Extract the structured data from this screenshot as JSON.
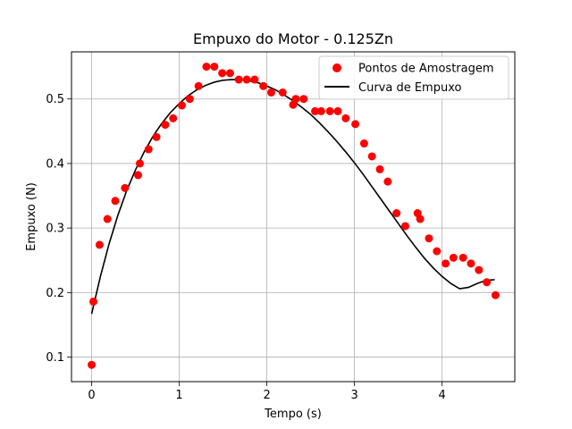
{
  "chart_data": {
    "type": "scatter",
    "title": "Empuxo do Motor - 0.125Zn",
    "xlabel": "Tempo (s)",
    "ylabel": "Empuxo (N)",
    "xlim": [
      -0.23,
      4.83
    ],
    "ylim": [
      0.062,
      0.573
    ],
    "xticks": [
      0,
      1,
      2,
      3,
      4
    ],
    "yticks": [
      0.1,
      0.2,
      0.3,
      0.4,
      0.5
    ],
    "xtick_labels": [
      "0",
      "1",
      "2",
      "3",
      "4"
    ],
    "ytick_labels": [
      "0.1",
      "0.2",
      "0.3",
      "0.4",
      "0.5"
    ],
    "grid": true,
    "legend_position": "top-right",
    "series": [
      {
        "name": "Pontos de Amostragem",
        "kind": "scatter",
        "color": "#ff0000",
        "x": [
          0.0,
          0.02,
          0.09,
          0.18,
          0.27,
          0.38,
          0.53,
          0.55,
          0.65,
          0.74,
          0.84,
          0.93,
          1.03,
          1.12,
          1.22,
          1.31,
          1.4,
          1.49,
          1.58,
          1.68,
          1.77,
          1.86,
          1.96,
          2.05,
          2.18,
          2.3,
          2.33,
          2.42,
          2.55,
          2.62,
          2.72,
          2.81,
          2.9,
          3.01,
          3.11,
          3.2,
          3.29,
          3.38,
          3.48,
          3.58,
          3.72,
          3.75,
          3.85,
          3.94,
          4.04,
          4.13,
          4.24,
          4.33,
          4.42,
          4.51,
          4.61
        ],
        "y": [
          0.088,
          0.186,
          0.274,
          0.314,
          0.342,
          0.362,
          0.382,
          0.4,
          0.422,
          0.441,
          0.46,
          0.47,
          0.49,
          0.5,
          0.52,
          0.55,
          0.55,
          0.54,
          0.54,
          0.53,
          0.53,
          0.53,
          0.52,
          0.51,
          0.51,
          0.491,
          0.5,
          0.5,
          0.481,
          0.481,
          0.481,
          0.481,
          0.47,
          0.461,
          0.431,
          0.411,
          0.391,
          0.372,
          0.323,
          0.303,
          0.323,
          0.314,
          0.284,
          0.264,
          0.245,
          0.254,
          0.254,
          0.245,
          0.235,
          0.216,
          0.196
        ]
      },
      {
        "name": "Curva de Empuxo",
        "kind": "line",
        "color": "#000000",
        "x": [
          0.0,
          0.1,
          0.2,
          0.3,
          0.4,
          0.5,
          0.6,
          0.7,
          0.8,
          0.9,
          1.0,
          1.1,
          1.2,
          1.3,
          1.4,
          1.5,
          1.6,
          1.7,
          1.8,
          1.9,
          2.0,
          2.1,
          2.2,
          2.3,
          2.4,
          2.5,
          2.6,
          2.7,
          2.8,
          2.9,
          3.0,
          3.1,
          3.2,
          3.3,
          3.4,
          3.5,
          3.6,
          3.7,
          3.8,
          3.9,
          4.0,
          4.1,
          4.2,
          4.3,
          4.4,
          4.5,
          4.6
        ],
        "y": [
          0.167,
          0.225,
          0.276,
          0.32,
          0.358,
          0.39,
          0.418,
          0.442,
          0.462,
          0.479,
          0.493,
          0.505,
          0.514,
          0.521,
          0.526,
          0.529,
          0.53,
          0.53,
          0.528,
          0.525,
          0.52,
          0.514,
          0.506,
          0.497,
          0.487,
          0.476,
          0.463,
          0.449,
          0.434,
          0.418,
          0.401,
          0.383,
          0.364,
          0.345,
          0.326,
          0.307,
          0.288,
          0.27,
          0.253,
          0.238,
          0.225,
          0.214,
          0.206,
          0.208,
          0.214,
          0.219,
          0.22
        ]
      }
    ]
  }
}
